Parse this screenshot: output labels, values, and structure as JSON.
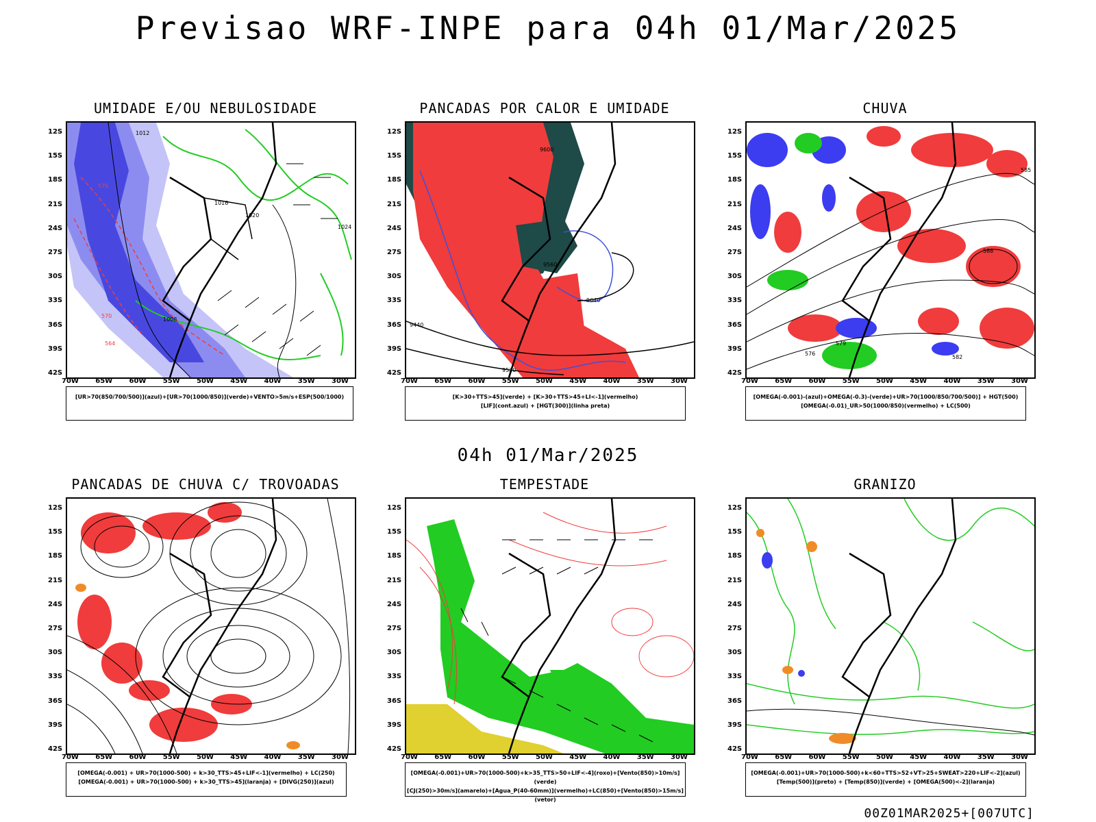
{
  "header": {
    "title": "Previsao WRF-INPE  para 04h 01/Mar/2025"
  },
  "mid_label": "04h 01/Mar/2025",
  "footer": "00Z01MAR2025+[007UTC]",
  "axes": {
    "lat_ticks": [
      "12S",
      "15S",
      "18S",
      "21S",
      "24S",
      "27S",
      "30S",
      "33S",
      "36S",
      "39S",
      "42S"
    ],
    "lon_ticks": [
      "70W",
      "65W",
      "60W",
      "55W",
      "50W",
      "45W",
      "40W",
      "35W",
      "30W"
    ]
  },
  "panels": [
    {
      "title": "UMIDADE E/OU NEBULOSIDADE",
      "legend": [
        "[UR>70(850/700/500)](azul)+[UR>70(1000/850)](verde)+VENTO>5m/s+ESP(500/1000)"
      ],
      "contour_labels": [
        "1012",
        "1016",
        "1020",
        "1024",
        "1008",
        "576",
        "570",
        "564"
      ]
    },
    {
      "title": "PANCADAS POR CALOR E UMIDADE",
      "legend": [
        "[K>30+TTS>45](verde)  +  [K>30+TTS>45+LI<-1](vermelho)",
        "[LIF](cont.azul)  +  [HGT(300)](linha preta)"
      ],
      "contour_labels": [
        "9600",
        "9640",
        "9520",
        "9560",
        "9440"
      ]
    },
    {
      "title": "CHUVA",
      "legend": [
        "[OMEGA(-0.001)-(azul)+OMEGA(-0.3)-(verde)+UR>70(1000/850/700/500)]  +  HGT(500)",
        "[OMEGA(-0.01)_UR>50(1000/850)(vermelho)  +  LC(500)"
      ],
      "contour_labels": [
        "585",
        "588",
        "582",
        "579",
        "576"
      ]
    },
    {
      "title": "PANCADAS DE CHUVA C/ TROVOADAS",
      "legend": [
        "[OMEGA(-0.001)  +  UR>70(1000-500)  +  k>30_TTS>45+LIF<-1](vermelho)  +  LC(250)",
        "[OMEGA(-0.001)  +  UR>70(1000-500)  +  k>30_TTS>45](laranja)  +  [DIVG(250)](azul)"
      ],
      "contour_labels": []
    },
    {
      "title": "TEMPESTADE",
      "legend": [
        "[OMEGA(-0.001)+UR>70(1000-500)+k>35_TTS>50+LIF<-4](roxo)+[Vento(850)>10m/s](verde)",
        "[CJ(250)>30m/s](amarelo)+[Agua_P(40-60mm)](vermelho)+LC(850)+[Vento(850)>15m/s](vetor)"
      ],
      "contour_labels": []
    },
    {
      "title": "GRANIZO",
      "legend": [
        "[OMEGA(-0.001)+UR>70(1000-500)+k<60+TTS>52+VT>25+SWEAT>220+LIF<-2](azul)",
        "[Temp(500)](preto)  +  [Temp(850)](verde)  +  [OMEGA(500)<-2](laranja)"
      ],
      "contour_labels": []
    }
  ],
  "colors": {
    "blue_dark": "#4848e0",
    "blue_mid": "#8c8cf0",
    "blue_light": "#c4c4f8",
    "green": "#22cc22",
    "red": "#f03c3c",
    "dark_teal": "#1e4a48",
    "yellow": "#e0d030",
    "orange": "#f08c28",
    "black": "#000000"
  }
}
